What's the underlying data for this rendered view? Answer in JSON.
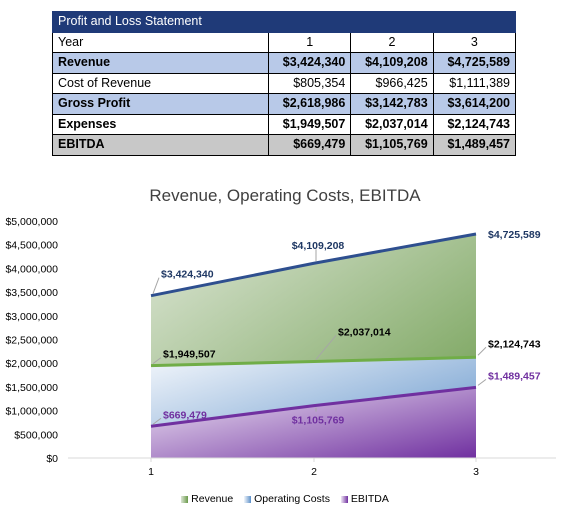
{
  "table": {
    "title": "Profit and Loss Statement",
    "header": {
      "label": "Year",
      "years": [
        "1",
        "2",
        "3"
      ]
    },
    "rows": [
      {
        "label": "Revenue",
        "values": [
          "$3,424,340",
          "$4,109,208",
          "$4,725,589"
        ],
        "style": "row-blue"
      },
      {
        "label": "Cost of Revenue",
        "values": [
          "$805,354",
          "$966,425",
          "$1,111,389"
        ],
        "style": "row-white"
      },
      {
        "label": "Gross Profit",
        "values": [
          "$2,618,986",
          "$3,142,783",
          "$3,614,200"
        ],
        "style": "row-blue"
      },
      {
        "label": "Expenses",
        "values": [
          "$1,949,507",
          "$2,037,014",
          "$2,124,743"
        ],
        "style": "row-bold"
      },
      {
        "label": "EBITDA",
        "values": [
          "$669,479",
          "$1,105,769",
          "$1,489,457"
        ],
        "style": "row-gray"
      }
    ]
  },
  "chart_data": {
    "type": "area",
    "title": "Revenue, Operating Costs, EBITDA",
    "categories": [
      "1",
      "2",
      "3"
    ],
    "ylim": [
      0,
      5000000
    ],
    "yticks": [
      "$0",
      "$500,000",
      "$1,000,000",
      "$1,500,000",
      "$2,000,000",
      "$2,500,000",
      "$3,000,000",
      "$3,500,000",
      "$4,000,000",
      "$4,500,000",
      "$5,000,000"
    ],
    "grid": false,
    "legend_position": "bottom",
    "series": [
      {
        "name": "Revenue",
        "values": [
          3424340,
          4109208,
          4725589
        ],
        "labels": [
          "$3,424,340",
          "$4,109,208",
          "$4,725,589"
        ],
        "line_color": "#2e4f8f",
        "fill_from": "#dde6d6",
        "fill_to": "#6a9a4a",
        "label_color": "#1f3864"
      },
      {
        "name": "Operating Costs",
        "values": [
          1949507,
          2037014,
          2124743
        ],
        "labels": [
          "$1,949,507",
          "$2,037,014",
          "$2,124,743"
        ],
        "line_color": "#70ad47",
        "fill_from": "#f2f6fb",
        "fill_to": "#5b8fc8",
        "label_color": "#000000"
      },
      {
        "name": "EBITDA",
        "values": [
          669479,
          1105769,
          1489457
        ],
        "labels": [
          "$669,479",
          "$1,105,769",
          "$1,489,457"
        ],
        "line_color": "#7030a0",
        "fill_from": "#f0e8f5",
        "fill_to": "#7030a0",
        "label_color": "#7030a0"
      }
    ]
  }
}
